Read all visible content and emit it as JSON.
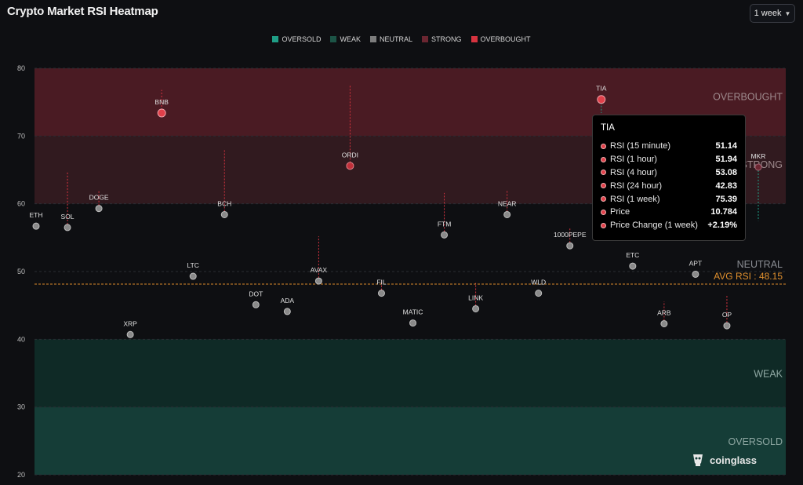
{
  "title": "Crypto Market RSI Heatmap",
  "timeframe": "1 week",
  "legend": [
    {
      "label": "OVERSOLD",
      "color": "#1f9e86"
    },
    {
      "label": "WEAK",
      "color": "#1c5446"
    },
    {
      "label": "NEUTRAL",
      "color": "#7d7d7d"
    },
    {
      "label": "STRONG",
      "color": "#6b2631"
    },
    {
      "label": "OVERBOUGHT",
      "color": "#d6333f"
    }
  ],
  "chart_data": {
    "type": "scatter",
    "title": "Crypto Market RSI Heatmap",
    "ylim": [
      20,
      80
    ],
    "yticks": [
      80,
      70,
      60,
      50,
      40,
      30,
      20
    ],
    "zones": [
      {
        "label": "OVERBOUGHT",
        "range": [
          70,
          80
        ],
        "color": "#4a1b23"
      },
      {
        "label": "STRONG",
        "range": [
          60,
          70
        ],
        "color": "#311a1f"
      },
      {
        "label": "NEUTRAL",
        "range": [
          40,
          60
        ],
        "color": "#0e0f12"
      },
      {
        "label": "WEAK",
        "range": [
          30,
          40
        ],
        "color": "#0f2a26"
      },
      {
        "label": "OVERSOLD",
        "range": [
          20,
          30
        ],
        "color": "#153d37"
      }
    ],
    "average": {
      "label": "AVG RSI : 48.15",
      "value": 48.15
    },
    "points": [
      {
        "name": "ETH",
        "x": 1,
        "rsi": 56.7
      },
      {
        "name": "SOL",
        "x": 2,
        "rsi": 56.5,
        "wick": 64.8
      },
      {
        "name": "DOGE",
        "x": 3,
        "rsi": 59.3,
        "wick": 62.0
      },
      {
        "name": "XRP",
        "x": 4,
        "rsi": 40.7
      },
      {
        "name": "BNB",
        "x": 5,
        "rsi": 73.4,
        "wick": 76.8
      },
      {
        "name": "LTC",
        "x": 6,
        "rsi": 49.3
      },
      {
        "name": "BCH",
        "x": 7,
        "rsi": 58.4,
        "wick": 68.1
      },
      {
        "name": "DOT",
        "x": 8,
        "rsi": 45.1
      },
      {
        "name": "ADA",
        "x": 9,
        "rsi": 44.1
      },
      {
        "name": "AVAX",
        "x": 10,
        "rsi": 48.6,
        "wick": 55.2
      },
      {
        "name": "ORDI",
        "x": 11,
        "rsi": 65.6,
        "wick": 77.5
      },
      {
        "name": "FIL",
        "x": 12,
        "rsi": 46.8,
        "wick": 48.7
      },
      {
        "name": "MATIC",
        "x": 13,
        "rsi": 42.4
      },
      {
        "name": "FTM",
        "x": 14,
        "rsi": 55.4,
        "wick": 61.6
      },
      {
        "name": "LINK",
        "x": 15,
        "rsi": 44.5,
        "wick": 48.3
      },
      {
        "name": "NEAR",
        "x": 16,
        "rsi": 58.4,
        "wick": 62.0
      },
      {
        "name": "WLD",
        "x": 17,
        "rsi": 46.8
      },
      {
        "name": "1000PEPE",
        "x": 18,
        "rsi": 53.8,
        "wick": 56.5
      },
      {
        "name": "TIA",
        "x": 19,
        "rsi": 75.4,
        "wick": 73.4
      },
      {
        "name": "ETC",
        "x": 20,
        "rsi": 50.8
      },
      {
        "name": "ARB",
        "x": 21,
        "rsi": 42.3,
        "wick": 45.6
      },
      {
        "name": "APT",
        "x": 22,
        "rsi": 49.6
      },
      {
        "name": "OP",
        "x": 23,
        "rsi": 42.0,
        "wick": 46.6
      },
      {
        "name": "MKR",
        "x": 24,
        "rsi": 65.4,
        "wick": 57.5
      }
    ]
  },
  "tooltip": {
    "title": "TIA",
    "rows": [
      {
        "label": "RSI (15 minute)",
        "value": "51.14"
      },
      {
        "label": "RSI (1 hour)",
        "value": "51.94"
      },
      {
        "label": "RSI (4 hour)",
        "value": "53.08"
      },
      {
        "label": "RSI (24 hour)",
        "value": "42.83"
      },
      {
        "label": "RSI (1 week)",
        "value": "75.39"
      },
      {
        "label": "Price",
        "value": "10.784"
      },
      {
        "label": "Price Change (1 week)",
        "value": "+2.19%"
      }
    ]
  },
  "brand": "coinglass"
}
